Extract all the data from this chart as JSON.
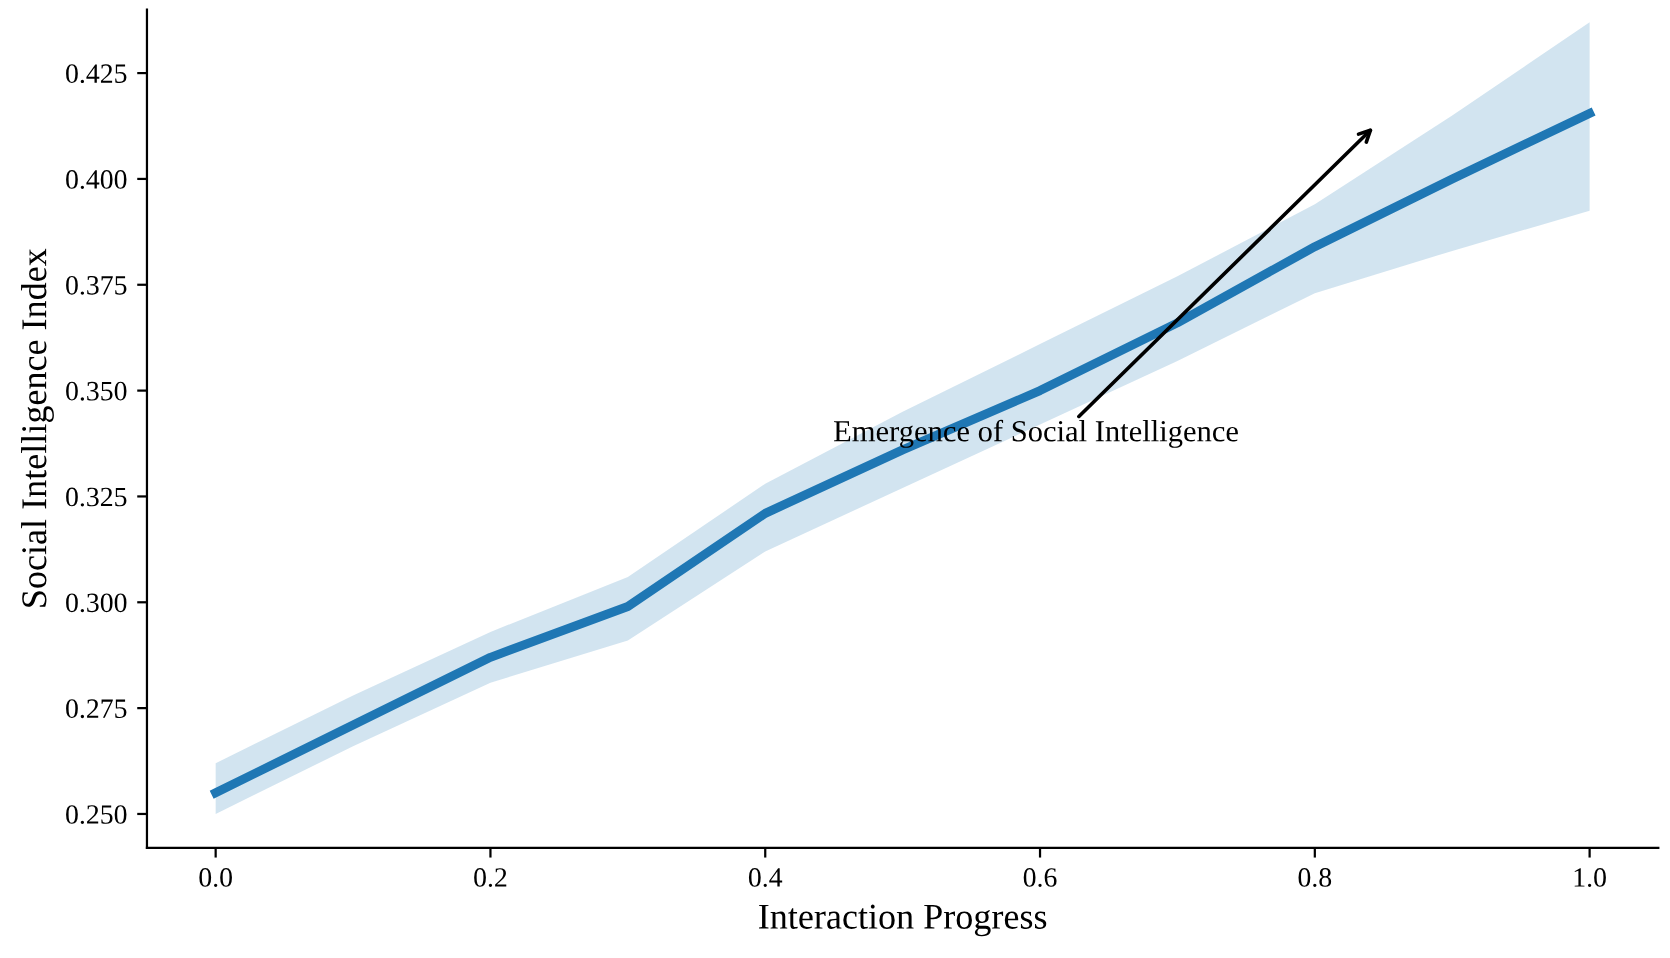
{
  "chart_data": {
    "type": "line",
    "xlabel": "Interaction Progress",
    "ylabel": "Social Intelligence Index",
    "x": [
      0.0,
      0.1,
      0.2,
      0.3,
      0.4,
      0.5,
      0.6,
      0.7,
      0.8,
      0.9,
      1.0
    ],
    "series": [
      {
        "color": "#1f77b4",
        "values": [
          0.255,
          0.271,
          0.287,
          0.299,
          0.321,
          0.336,
          0.35,
          0.366,
          0.384,
          0.4,
          0.4155
        ],
        "lower": [
          0.25,
          0.266,
          0.281,
          0.291,
          0.312,
          0.327,
          0.342,
          0.357,
          0.373,
          0.383,
          0.3925
        ],
        "upper": [
          0.262,
          0.278,
          0.293,
          0.306,
          0.328,
          0.345,
          0.361,
          0.377,
          0.394,
          0.415,
          0.437
        ]
      }
    ],
    "annotations": [
      "Emergence of Social Intelligence"
    ],
    "xlim": [
      -0.05,
      1.05
    ],
    "ylim": [
      0.242,
      0.44
    ],
    "xticks": [
      {
        "value": 0.0,
        "label": "0.0"
      },
      0.2,
      0.4,
      0.6,
      0.8,
      {
        "value": 1.0,
        "label": "1.0"
      }
    ],
    "yticks": [
      {
        "value": 0.25,
        "label": "0.250"
      },
      0.275,
      {
        "value": 0.3,
        "label": "0.300"
      },
      0.325,
      {
        "value": 0.35,
        "label": "0.350"
      },
      0.375,
      {
        "value": 0.4,
        "label": "0.400"
      },
      0.425
    ],
    "grid": false,
    "legend": false,
    "marker": "none",
    "line_style": "solid"
  }
}
